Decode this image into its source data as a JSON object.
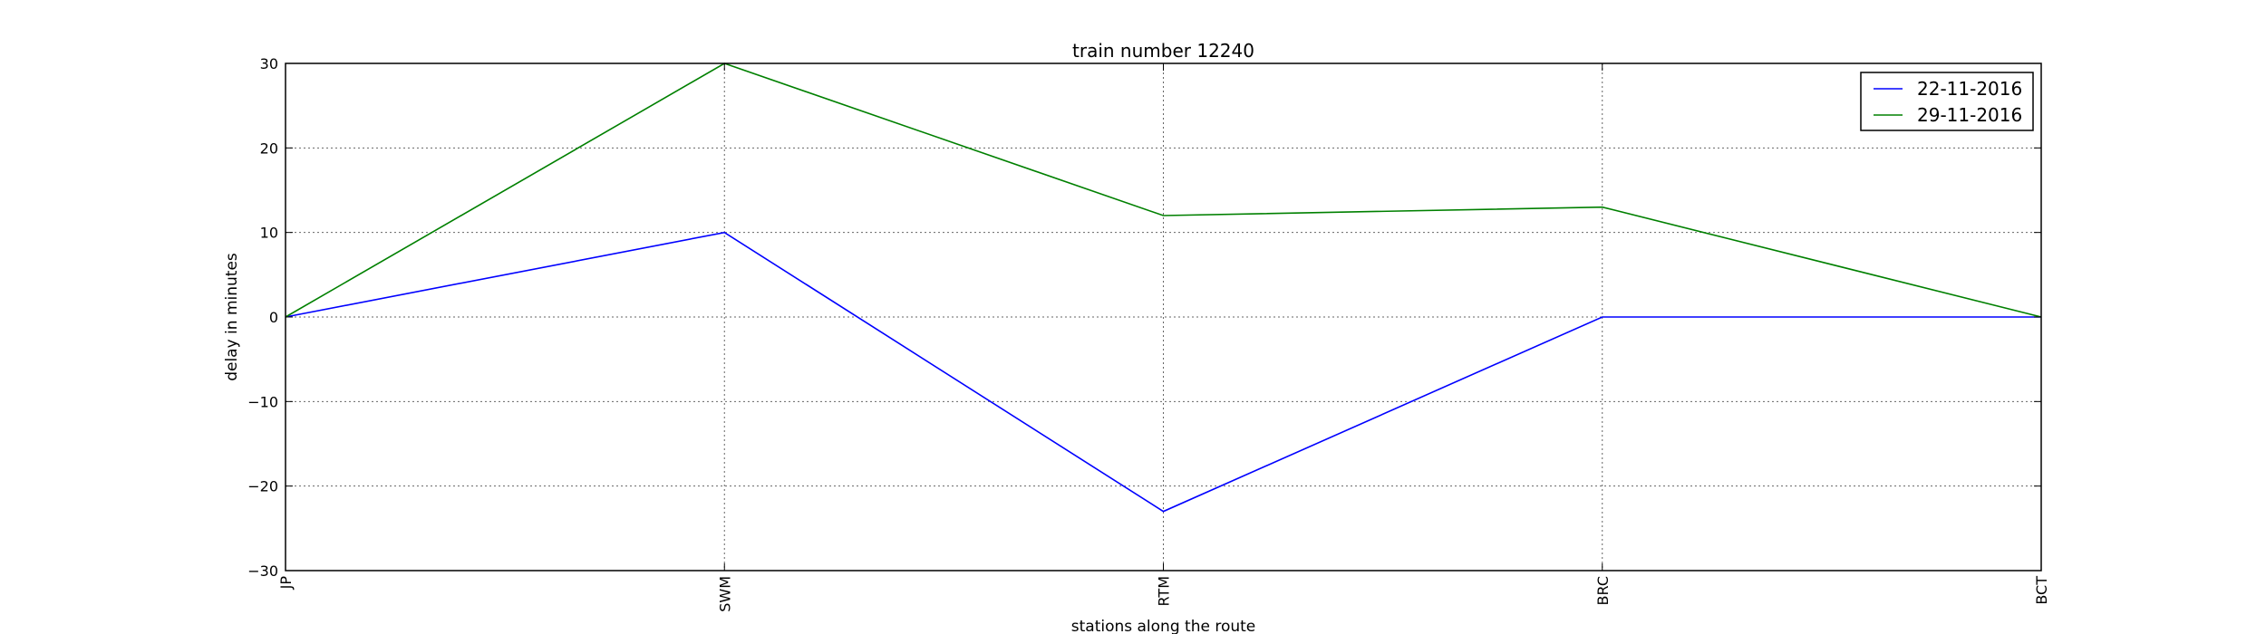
{
  "chart_data": {
    "type": "line",
    "title": "train number 12240",
    "xlabel": "stations along the route",
    "ylabel": "delay in minutes",
    "categories": [
      "JP",
      "SWM",
      "RTM",
      "BRC",
      "BCT"
    ],
    "ylim": [
      -30,
      30
    ],
    "yticks": [
      "30",
      "20",
      "10",
      "0",
      "−10",
      "−20",
      "−30"
    ],
    "grid": true,
    "legend_position": "top-right",
    "series": [
      {
        "name": "22-11-2016",
        "color": "#0000ff",
        "values": [
          0,
          10,
          -23,
          0,
          0
        ]
      },
      {
        "name": "29-11-2016",
        "color": "#008000",
        "values": [
          0,
          30,
          12,
          13,
          0
        ]
      }
    ]
  }
}
